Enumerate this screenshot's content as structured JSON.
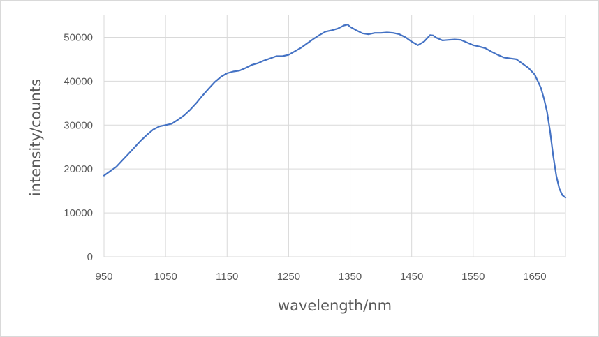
{
  "chart_data": {
    "type": "line",
    "title": "",
    "xlabel": "wavelength/nm",
    "ylabel": "intensity/counts",
    "xlim": [
      950,
      1700
    ],
    "ylim": [
      0,
      55000
    ],
    "xticks": [
      950,
      1050,
      1150,
      1250,
      1350,
      1450,
      1550,
      1650
    ],
    "yticks": [
      0,
      10000,
      20000,
      30000,
      40000,
      50000
    ],
    "grid": true,
    "legend": "none",
    "series": [
      {
        "name": "",
        "color": "#4472c4",
        "x": [
          950,
          960,
          970,
          980,
          990,
          1000,
          1010,
          1020,
          1030,
          1040,
          1050,
          1060,
          1070,
          1080,
          1090,
          1100,
          1110,
          1120,
          1130,
          1140,
          1150,
          1160,
          1170,
          1180,
          1190,
          1200,
          1210,
          1220,
          1230,
          1240,
          1250,
          1260,
          1270,
          1280,
          1290,
          1300,
          1310,
          1320,
          1330,
          1340,
          1346,
          1350,
          1360,
          1370,
          1380,
          1390,
          1400,
          1410,
          1420,
          1430,
          1440,
          1450,
          1460,
          1470,
          1480,
          1485,
          1490,
          1500,
          1510,
          1520,
          1530,
          1540,
          1550,
          1560,
          1570,
          1580,
          1590,
          1600,
          1610,
          1620,
          1630,
          1640,
          1650,
          1660,
          1665,
          1670,
          1675,
          1680,
          1685,
          1690,
          1695,
          1700
        ],
        "y": [
          18500,
          19500,
          20500,
          22000,
          23500,
          25000,
          26500,
          27800,
          29000,
          29700,
          30000,
          30300,
          31200,
          32200,
          33500,
          35000,
          36700,
          38300,
          39800,
          41000,
          41800,
          42200,
          42400,
          43000,
          43700,
          44100,
          44700,
          45200,
          45700,
          45700,
          46000,
          46800,
          47600,
          48600,
          49600,
          50500,
          51300,
          51600,
          52000,
          52700,
          52900,
          52400,
          51600,
          50900,
          50700,
          51000,
          51000,
          51100,
          51000,
          50700,
          50000,
          49000,
          48200,
          49000,
          50500,
          50400,
          49900,
          49300,
          49400,
          49500,
          49400,
          48800,
          48200,
          47900,
          47500,
          46700,
          46000,
          45400,
          45200,
          45000,
          44000,
          43000,
          41500,
          38500,
          36000,
          33000,
          28500,
          23000,
          18500,
          15500,
          14000,
          13500
        ]
      }
    ]
  }
}
